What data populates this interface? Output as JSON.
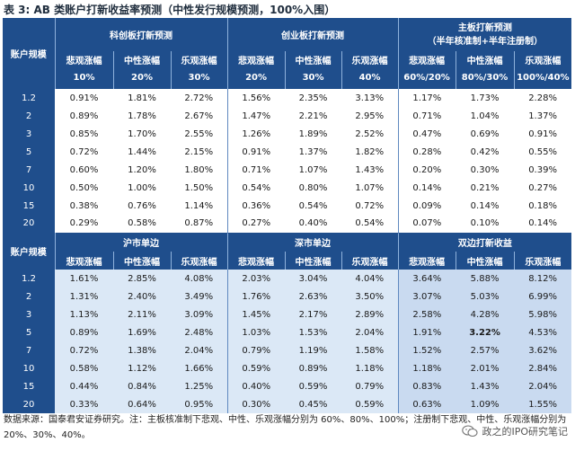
{
  "title": "表 3: AB 类账户打新收益率预测（中性发行规模预测，100%入围）",
  "top": {
    "corner": "账户规模",
    "groups": [
      {
        "label": "科创板打新预测",
        "sub": ""
      },
      {
        "label": "创业板打新预测",
        "sub": ""
      },
      {
        "label": "主板打新预测",
        "sub": "（半年核准制+半年注册制）"
      }
    ],
    "cols": [
      {
        "name": "悲观涨幅",
        "pct": "10%"
      },
      {
        "name": "中性涨幅",
        "pct": "20%"
      },
      {
        "name": "乐观涨幅",
        "pct": "30%"
      },
      {
        "name": "悲观涨幅",
        "pct": "20%"
      },
      {
        "name": "中性涨幅",
        "pct": "30%"
      },
      {
        "name": "乐观涨幅",
        "pct": "40%"
      },
      {
        "name": "悲观涨幅",
        "pct": "60%/20%"
      },
      {
        "name": "中性涨幅",
        "pct": "80%/30%"
      },
      {
        "name": "乐观涨幅",
        "pct": "100%/40%"
      }
    ],
    "rows": [
      {
        "size": "1.2",
        "cells": [
          "0.91%",
          "1.81%",
          "2.72%",
          "1.56%",
          "2.35%",
          "3.13%",
          "1.17%",
          "1.73%",
          "2.28%"
        ]
      },
      {
        "size": "2",
        "cells": [
          "0.89%",
          "1.78%",
          "2.67%",
          "1.47%",
          "2.21%",
          "2.95%",
          "0.71%",
          "1.04%",
          "1.37%"
        ]
      },
      {
        "size": "3",
        "cells": [
          "0.85%",
          "1.70%",
          "2.55%",
          "1.26%",
          "1.89%",
          "2.52%",
          "0.47%",
          "0.69%",
          "0.91%"
        ]
      },
      {
        "size": "5",
        "cells": [
          "0.72%",
          "1.44%",
          "2.15%",
          "0.91%",
          "1.37%",
          "1.82%",
          "0.28%",
          "0.42%",
          "0.55%"
        ]
      },
      {
        "size": "7",
        "cells": [
          "0.60%",
          "1.20%",
          "1.80%",
          "0.71%",
          "1.07%",
          "1.43%",
          "0.20%",
          "0.30%",
          "0.39%"
        ]
      },
      {
        "size": "10",
        "cells": [
          "0.50%",
          "1.00%",
          "1.50%",
          "0.54%",
          "0.80%",
          "1.07%",
          "0.14%",
          "0.21%",
          "0.27%"
        ]
      },
      {
        "size": "15",
        "cells": [
          "0.38%",
          "0.76%",
          "1.14%",
          "0.36%",
          "0.54%",
          "0.72%",
          "0.09%",
          "0.14%",
          "0.18%"
        ]
      },
      {
        "size": "20",
        "cells": [
          "0.29%",
          "0.58%",
          "0.87%",
          "0.27%",
          "0.40%",
          "0.54%",
          "0.07%",
          "0.10%",
          "0.14%"
        ]
      }
    ]
  },
  "bottom": {
    "corner": "账户规模",
    "groups": [
      "沪市单边",
      "深市单边",
      "双边打新收益"
    ],
    "cols": [
      "悲观涨幅",
      "中性涨幅",
      "乐观涨幅",
      "悲观涨幅",
      "中性涨幅",
      "乐观涨幅",
      "悲观涨幅",
      "中性涨幅",
      "乐观涨幅"
    ],
    "rows": [
      {
        "size": "1.2",
        "cells": [
          "1.61%",
          "2.85%",
          "4.08%",
          "2.03%",
          "3.04%",
          "4.04%",
          "3.64%",
          "5.88%",
          "8.12%"
        ]
      },
      {
        "size": "2",
        "cells": [
          "1.31%",
          "2.40%",
          "3.49%",
          "1.76%",
          "2.63%",
          "3.50%",
          "3.07%",
          "5.03%",
          "6.99%"
        ]
      },
      {
        "size": "3",
        "cells": [
          "1.13%",
          "2.11%",
          "3.09%",
          "1.45%",
          "2.17%",
          "2.89%",
          "2.58%",
          "4.28%",
          "5.98%"
        ]
      },
      {
        "size": "5",
        "cells": [
          "0.89%",
          "1.69%",
          "2.48%",
          "1.03%",
          "1.53%",
          "2.04%",
          "1.91%",
          "3.22%",
          "4.53%"
        ]
      },
      {
        "size": "7",
        "cells": [
          "0.72%",
          "1.38%",
          "2.04%",
          "0.79%",
          "1.19%",
          "1.58%",
          "1.52%",
          "2.57%",
          "3.62%"
        ]
      },
      {
        "size": "10",
        "cells": [
          "0.58%",
          "1.12%",
          "1.66%",
          "0.59%",
          "0.89%",
          "1.18%",
          "1.18%",
          "2.01%",
          "2.84%"
        ]
      },
      {
        "size": "15",
        "cells": [
          "0.44%",
          "0.84%",
          "1.25%",
          "0.40%",
          "0.59%",
          "0.79%",
          "0.83%",
          "1.43%",
          "2.04%"
        ]
      },
      {
        "size": "20",
        "cells": [
          "0.33%",
          "0.64%",
          "0.95%",
          "0.30%",
          "0.45%",
          "0.59%",
          "0.63%",
          "1.09%",
          "1.55%"
        ]
      }
    ]
  },
  "source": "数据来源：国泰君安证券研究。注：主板核准制下悲观、中性、乐观涨幅分别为 60%、80%、100%；注册制下悲观、中性、乐观涨幅分别为 20%、30%、40%。",
  "watermark": "政之的IPO研究笔记",
  "icons": {
    "watermark": "wechat-icon"
  },
  "colors": {
    "header": "#1f4e8c",
    "shade": "#dbe8f6",
    "shade_strong": "#c9daf0"
  }
}
